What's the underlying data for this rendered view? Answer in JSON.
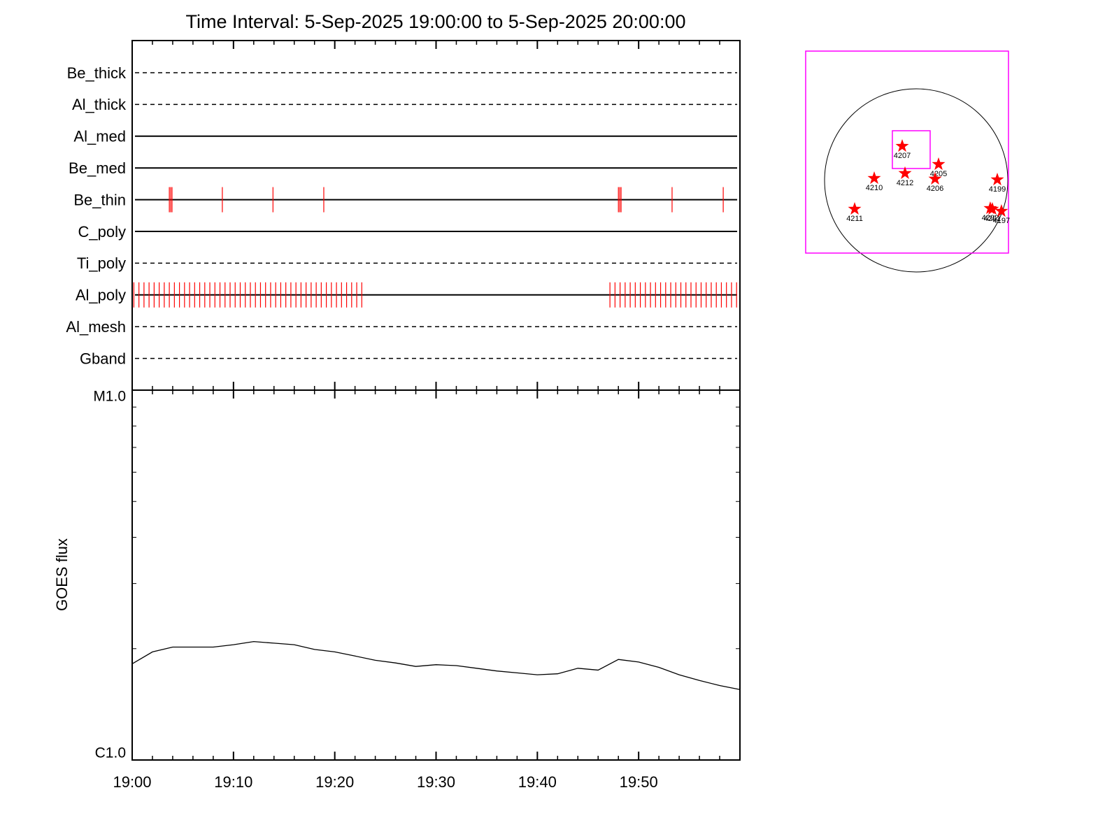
{
  "title": "Time Interval:  5-Sep-2025 19:00:00 to  5-Sep-2025 20:00:00",
  "chart_data": [
    {
      "type": "event",
      "xlim": [
        "19:00",
        "20:00"
      ],
      "event_color": "#ff0000",
      "filters": [
        {
          "name": "Be_thick",
          "style": "dashed",
          "events": []
        },
        {
          "name": "Al_thick",
          "style": "dashed",
          "events": []
        },
        {
          "name": "Al_med",
          "style": "solid",
          "events": []
        },
        {
          "name": "Be_med",
          "style": "solid",
          "events": []
        },
        {
          "name": "Be_thin",
          "style": "solid",
          "events": [
            "19:03:40",
            "19:03:48",
            "19:03:56",
            "19:08:54",
            "19:13:54",
            "19:18:55",
            "19:48:00",
            "19:48:08",
            "19:48:16",
            "19:53:18",
            "19:58:21"
          ]
        },
        {
          "name": "C_poly",
          "style": "solid",
          "events": []
        },
        {
          "name": "Ti_poly",
          "style": "dashed",
          "events": []
        },
        {
          "name": "Al_poly",
          "style": "solid",
          "events": [
            "19:00:10",
            "19:00:40",
            "19:01:10",
            "19:01:40",
            "19:02:10",
            "19:02:40",
            "19:03:10",
            "19:03:40",
            "19:04:10",
            "19:04:40",
            "19:05:10",
            "19:05:40",
            "19:06:10",
            "19:06:40",
            "19:07:10",
            "19:07:40",
            "19:08:10",
            "19:08:40",
            "19:09:10",
            "19:09:40",
            "19:10:10",
            "19:10:40",
            "19:11:10",
            "19:11:40",
            "19:12:10",
            "19:12:40",
            "19:13:10",
            "19:13:40",
            "19:14:10",
            "19:14:40",
            "19:15:10",
            "19:15:40",
            "19:16:10",
            "19:16:40",
            "19:17:10",
            "19:17:40",
            "19:18:10",
            "19:18:40",
            "19:19:10",
            "19:19:40",
            "19:20:10",
            "19:20:40",
            "19:21:10",
            "19:21:40",
            "19:22:10",
            "19:22:40",
            "19:47:10",
            "19:47:40",
            "19:48:10",
            "19:48:40",
            "19:49:10",
            "19:49:40",
            "19:50:10",
            "19:50:40",
            "19:51:10",
            "19:51:40",
            "19:52:10",
            "19:52:40",
            "19:53:10",
            "19:53:40",
            "19:54:10",
            "19:54:40",
            "19:55:10",
            "19:55:40",
            "19:56:10",
            "19:56:40",
            "19:57:10",
            "19:57:40",
            "19:58:10",
            "19:58:40",
            "19:59:10",
            "19:59:40"
          ]
        },
        {
          "name": "Al_mesh",
          "style": "dashed",
          "events": []
        },
        {
          "name": "Gband",
          "style": "dashed",
          "events": []
        }
      ]
    },
    {
      "type": "line",
      "y_label": "GOES flux",
      "log_scale": true,
      "color": "#000000",
      "x": [
        "19:00",
        "19:02",
        "19:04",
        "19:06",
        "19:08",
        "19:10",
        "19:12",
        "19:14",
        "19:16",
        "19:18",
        "19:20",
        "19:22",
        "19:24",
        "19:26",
        "19:28",
        "19:30",
        "19:32",
        "19:34",
        "19:36",
        "19:38",
        "19:40",
        "19:42",
        "19:44",
        "19:46",
        "19:48",
        "19:50",
        "19:52",
        "19:54",
        "19:56",
        "19:58",
        "20:00"
      ],
      "values": [
        1.82e-06,
        1.96e-06,
        2.02e-06,
        2.02e-06,
        2.02e-06,
        2.05e-06,
        2.09e-06,
        2.07e-06,
        2.05e-06,
        1.99e-06,
        1.96e-06,
        1.91e-06,
        1.86e-06,
        1.83e-06,
        1.79e-06,
        1.81e-06,
        1.8e-06,
        1.77e-06,
        1.74e-06,
        1.72e-06,
        1.7e-06,
        1.71e-06,
        1.77e-06,
        1.75e-06,
        1.87e-06,
        1.84e-06,
        1.78e-06,
        1.7e-06,
        1.64e-06,
        1.59e-06,
        1.55e-06
      ],
      "xlim": [
        "19:00",
        "20:00"
      ],
      "xticks": [
        "19:00",
        "19:10",
        "19:20",
        "19:30",
        "19:40",
        "19:50"
      ],
      "ylim": [
        1e-06,
        1e-05
      ],
      "yticks": [
        {
          "value": 1e-06,
          "label": "C1.0"
        },
        {
          "value": 1e-05,
          "label": "M1.0"
        }
      ],
      "yminorticks": [
        2e-06,
        3e-06,
        4e-06,
        5e-06,
        6e-06,
        7e-06,
        8e-06,
        9e-06
      ]
    },
    {
      "type": "map",
      "solar_radius": 950,
      "fov_color": "#ff00ff",
      "marker_color": "#ff0000",
      "fov": [
        [
          -1146,
          957,
          -754,
          1341
        ],
        [
          -247,
          145,
          123,
          515
        ]
      ],
      "regions": [
        {
          "label": "4207",
          "x": -145,
          "y": 355
        },
        {
          "label": "4205",
          "x": 232,
          "y": 167
        },
        {
          "label": "4212",
          "x": -116,
          "y": 73
        },
        {
          "label": "4206",
          "x": 196,
          "y": 15
        },
        {
          "label": "4210",
          "x": -435,
          "y": 22
        },
        {
          "label": "4199",
          "x": 841,
          "y": 7
        },
        {
          "label": "4211",
          "x": -638,
          "y": -297
        },
        {
          "label": "4202",
          "x": 768,
          "y": -290
        },
        {
          "label": "4201",
          "x": 790,
          "y": -297
        },
        {
          "label": "4197",
          "x": 884,
          "y": -319
        }
      ]
    }
  ]
}
